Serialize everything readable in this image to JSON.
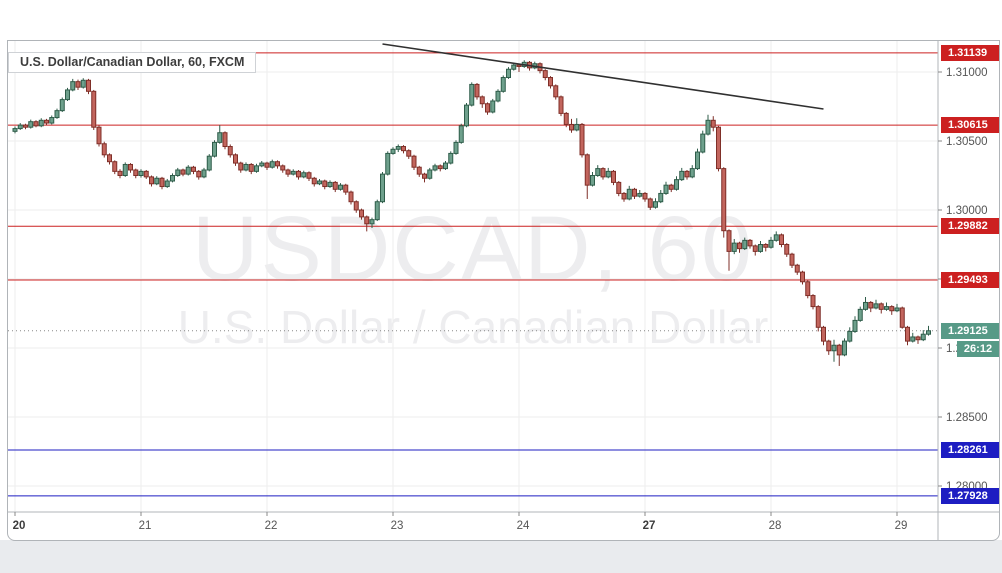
{
  "legend": {
    "title": "U.S. Dollar/Canadian Dollar, 60, FXCM"
  },
  "watermark": {
    "line1": "USDCAD, 60",
    "line2": "U.S. Dollar / Canadian Dollar"
  },
  "colors": {
    "up_fill": "#6ea08c",
    "up_border": "#2f5d4a",
    "down_fill": "#c2655d",
    "down_border": "#7f2f28",
    "resistance": "#cc2020",
    "support": "#1d1dc2",
    "current": "#579a87",
    "grid": "#ededed",
    "axis_text": "#555555",
    "axis_text_bold": "#3c3c3c",
    "border": "#b0b4b8",
    "trend": "#303030",
    "tag_text": "#ffffff",
    "current_dotted": "#888888"
  },
  "price_axis": {
    "ticks": [
      {
        "price": 131000,
        "label": "1.31000"
      },
      {
        "price": 130500,
        "label": "1.30500"
      },
      {
        "price": 130000,
        "label": "1.30000"
      },
      {
        "price": 129500,
        "label": "1.29500"
      },
      {
        "price": 129000,
        "label": "1.29000"
      },
      {
        "price": 128500,
        "label": "1.28500"
      },
      {
        "price": 128000,
        "label": "1.28000"
      }
    ]
  },
  "time_axis": {
    "ticks": [
      {
        "bar": 0,
        "label": "20",
        "bold": true
      },
      {
        "bar": 24,
        "label": "21",
        "bold": false
      },
      {
        "bar": 48,
        "label": "22",
        "bold": false
      },
      {
        "bar": 72,
        "label": "23",
        "bold": false
      },
      {
        "bar": 96,
        "label": "24",
        "bold": false
      },
      {
        "bar": 120,
        "label": "27",
        "bold": true
      },
      {
        "bar": 144,
        "label": "28",
        "bold": false
      },
      {
        "bar": 168,
        "label": "29",
        "bold": false
      }
    ]
  },
  "chart_data": {
    "type": "candlestick",
    "title": "U.S. Dollar/Canadian Dollar, 60, FXCM",
    "symbol": "USDCAD",
    "interval": "60",
    "exchange": "FXCM",
    "price_unit": 1e-05,
    "ylim": [
      1.2781,
      1.3133
    ],
    "x_labels": [
      "20",
      "21",
      "22",
      "23",
      "24",
      "27",
      "28",
      "29"
    ],
    "levels": [
      {
        "price": 131139,
        "label": "1.31139",
        "type": "resistance"
      },
      {
        "price": 130615,
        "label": "1.30615",
        "type": "resistance"
      },
      {
        "price": 129882,
        "label": "1.29882",
        "type": "resistance"
      },
      {
        "price": 129493,
        "label": "1.29493",
        "type": "resistance"
      },
      {
        "price": 128261,
        "label": "1.28261",
        "type": "support"
      },
      {
        "price": 127928,
        "label": "1.27928",
        "type": "support"
      }
    ],
    "current": {
      "price": 129125,
      "label": "1.29125",
      "countdown": "26:12"
    },
    "trendline": {
      "from": {
        "bar": 70,
        "price": 131203
      },
      "to": {
        "bar": 154,
        "price": 130732
      }
    },
    "candles": [
      [
        130570,
        130605,
        130555,
        130590
      ],
      [
        130590,
        130630,
        130580,
        130615
      ],
      [
        130615,
        130625,
        130585,
        130600
      ],
      [
        130600,
        130655,
        130590,
        130640
      ],
      [
        130640,
        130650,
        130600,
        130610
      ],
      [
        130610,
        130665,
        130600,
        130650
      ],
      [
        130650,
        130660,
        130615,
        130630
      ],
      [
        130630,
        130685,
        130620,
        130670
      ],
      [
        130670,
        130735,
        130660,
        130720
      ],
      [
        130720,
        130815,
        130710,
        130800
      ],
      [
        130800,
        130885,
        130790,
        130870
      ],
      [
        130870,
        130950,
        130860,
        130930
      ],
      [
        130930,
        130945,
        130870,
        130890
      ],
      [
        130890,
        130955,
        130880,
        130940
      ],
      [
        130940,
        130950,
        130840,
        130860
      ],
      [
        130860,
        130870,
        130580,
        130600
      ],
      [
        130600,
        130615,
        130460,
        130480
      ],
      [
        130480,
        130495,
        130380,
        130400
      ],
      [
        130400,
        130410,
        130330,
        130350
      ],
      [
        130350,
        130360,
        130260,
        130280
      ],
      [
        130280,
        130295,
        130230,
        130250
      ],
      [
        130250,
        130345,
        130240,
        130330
      ],
      [
        130330,
        130340,
        130270,
        130290
      ],
      [
        130290,
        130300,
        130230,
        130250
      ],
      [
        130250,
        130295,
        130235,
        130280
      ],
      [
        130280,
        130290,
        130225,
        130240
      ],
      [
        130240,
        130250,
        130170,
        130190
      ],
      [
        130190,
        130245,
        130180,
        130230
      ],
      [
        130230,
        130240,
        130150,
        130170
      ],
      [
        130170,
        130225,
        130160,
        130210
      ],
      [
        130210,
        130265,
        130200,
        130250
      ],
      [
        130250,
        130305,
        130240,
        130290
      ],
      [
        130290,
        130300,
        130245,
        130260
      ],
      [
        130260,
        130325,
        130250,
        130310
      ],
      [
        130310,
        130320,
        130260,
        130280
      ],
      [
        130280,
        130290,
        130220,
        130240
      ],
      [
        130240,
        130305,
        130230,
        130290
      ],
      [
        130290,
        130405,
        130280,
        130390
      ],
      [
        130390,
        130505,
        130380,
        130490
      ],
      [
        130490,
        130615,
        130480,
        130560
      ],
      [
        130560,
        130570,
        130440,
        130460
      ],
      [
        130460,
        130475,
        130380,
        130400
      ],
      [
        130400,
        130410,
        130320,
        130340
      ],
      [
        130340,
        130350,
        130270,
        130290
      ],
      [
        130290,
        130345,
        130280,
        130330
      ],
      [
        130330,
        130340,
        130260,
        130280
      ],
      [
        130280,
        130335,
        130270,
        130320
      ],
      [
        130320,
        130355,
        130310,
        130340
      ],
      [
        130340,
        130350,
        130290,
        130310
      ],
      [
        130310,
        130365,
        130300,
        130350
      ],
      [
        130350,
        130360,
        130300,
        130320
      ],
      [
        130320,
        130330,
        130270,
        130290
      ],
      [
        130290,
        130300,
        130240,
        130260
      ],
      [
        130260,
        130295,
        130250,
        130280
      ],
      [
        130280,
        130290,
        130220,
        130240
      ],
      [
        130240,
        130285,
        130230,
        130270
      ],
      [
        130270,
        130280,
        130210,
        130230
      ],
      [
        130230,
        130240,
        130170,
        130190
      ],
      [
        130190,
        130225,
        130180,
        130210
      ],
      [
        130210,
        130220,
        130150,
        130170
      ],
      [
        130170,
        130215,
        130160,
        130200
      ],
      [
        130200,
        130210,
        130130,
        130150
      ],
      [
        130150,
        130195,
        130140,
        130180
      ],
      [
        130180,
        130190,
        130110,
        130130
      ],
      [
        130130,
        130140,
        130040,
        130060
      ],
      [
        130060,
        130070,
        129980,
        130000
      ],
      [
        130000,
        130010,
        129930,
        129950
      ],
      [
        129950,
        129960,
        129845,
        129900
      ],
      [
        129900,
        129945,
        129870,
        129930
      ],
      [
        129930,
        130075,
        129920,
        130060
      ],
      [
        130060,
        130275,
        130050,
        130260
      ],
      [
        130260,
        130425,
        130250,
        130410
      ],
      [
        130410,
        130455,
        130400,
        130440
      ],
      [
        130440,
        130475,
        130420,
        130460
      ],
      [
        130460,
        130470,
        130410,
        130430
      ],
      [
        130430,
        130440,
        130370,
        130390
      ],
      [
        130390,
        130400,
        130290,
        130310
      ],
      [
        130310,
        130320,
        130240,
        130260
      ],
      [
        130260,
        130270,
        130200,
        130230
      ],
      [
        130230,
        130305,
        130220,
        130290
      ],
      [
        130290,
        130335,
        130280,
        130320
      ],
      [
        130320,
        130330,
        130280,
        130300
      ],
      [
        130300,
        130355,
        130290,
        130340
      ],
      [
        130340,
        130425,
        130330,
        130410
      ],
      [
        130410,
        130505,
        130400,
        130490
      ],
      [
        130490,
        130625,
        130480,
        130610
      ],
      [
        130610,
        130775,
        130600,
        130760
      ],
      [
        130760,
        130925,
        130750,
        130910
      ],
      [
        130910,
        130920,
        130800,
        130820
      ],
      [
        130820,
        130830,
        130740,
        130770
      ],
      [
        130770,
        130780,
        130690,
        130710
      ],
      [
        130710,
        130805,
        130700,
        130790
      ],
      [
        130790,
        130875,
        130780,
        130860
      ],
      [
        130860,
        130975,
        130850,
        130960
      ],
      [
        130960,
        131035,
        130950,
        131020
      ],
      [
        131020,
        131065,
        131010,
        131050
      ],
      [
        131050,
        131060,
        131000,
        131040
      ],
      [
        131040,
        131085,
        131030,
        131070
      ],
      [
        131070,
        131080,
        131010,
        131030
      ],
      [
        131030,
        131075,
        131020,
        131060
      ],
      [
        131060,
        131070,
        130990,
        131010
      ],
      [
        131010,
        131020,
        130940,
        130960
      ],
      [
        130960,
        130970,
        130880,
        130900
      ],
      [
        130900,
        130910,
        130800,
        130820
      ],
      [
        130820,
        130830,
        130680,
        130700
      ],
      [
        130700,
        130710,
        130600,
        130620
      ],
      [
        130620,
        130660,
        130560,
        130580
      ],
      [
        130580,
        130665,
        130570,
        130620
      ],
      [
        130620,
        130630,
        130380,
        130400
      ],
      [
        130400,
        130410,
        130080,
        130180
      ],
      [
        130180,
        130275,
        130170,
        130250
      ],
      [
        130250,
        130325,
        130240,
        130300
      ],
      [
        130300,
        130310,
        130220,
        130240
      ],
      [
        130240,
        130305,
        130230,
        130280
      ],
      [
        130280,
        130290,
        130180,
        130200
      ],
      [
        130200,
        130210,
        130100,
        130120
      ],
      [
        130120,
        130130,
        130060,
        130080
      ],
      [
        130080,
        130175,
        130070,
        130150
      ],
      [
        130150,
        130160,
        130080,
        130100
      ],
      [
        130100,
        130145,
        130090,
        130120
      ],
      [
        130120,
        130130,
        130060,
        130080
      ],
      [
        130080,
        130090,
        130000,
        130020
      ],
      [
        130020,
        130085,
        130010,
        130060
      ],
      [
        130060,
        130145,
        130050,
        130120
      ],
      [
        130120,
        130205,
        130110,
        130180
      ],
      [
        130180,
        130190,
        130130,
        130150
      ],
      [
        130150,
        130245,
        130140,
        130220
      ],
      [
        130220,
        130305,
        130210,
        130280
      ],
      [
        130280,
        130290,
        130220,
        130240
      ],
      [
        130240,
        130325,
        130230,
        130300
      ],
      [
        130300,
        130445,
        130290,
        130420
      ],
      [
        130420,
        130575,
        130410,
        130550
      ],
      [
        130550,
        130690,
        130540,
        130650
      ],
      [
        130650,
        130680,
        130570,
        130600
      ],
      [
        130600,
        130610,
        130280,
        130300
      ],
      [
        130300,
        130310,
        129800,
        129850
      ],
      [
        129850,
        129860,
        129560,
        129700
      ],
      [
        129700,
        129790,
        129680,
        129760
      ],
      [
        129760,
        129770,
        129690,
        129720
      ],
      [
        129720,
        129800,
        129710,
        129780
      ],
      [
        129780,
        129790,
        129720,
        129740
      ],
      [
        129740,
        129750,
        129670,
        129700
      ],
      [
        129700,
        129775,
        129690,
        129750
      ],
      [
        129750,
        129760,
        129700,
        129730
      ],
      [
        129730,
        129805,
        129720,
        129780
      ],
      [
        129780,
        129845,
        129770,
        129820
      ],
      [
        129820,
        129830,
        129730,
        129750
      ],
      [
        129750,
        129760,
        129660,
        129680
      ],
      [
        129680,
        129690,
        129580,
        129600
      ],
      [
        129600,
        129610,
        129530,
        129550
      ],
      [
        129550,
        129560,
        129460,
        129480
      ],
      [
        129480,
        129490,
        129360,
        129380
      ],
      [
        129380,
        129390,
        129280,
        129300
      ],
      [
        129300,
        129310,
        129120,
        129150
      ],
      [
        129150,
        129160,
        129020,
        129050
      ],
      [
        129050,
        129060,
        128950,
        128980
      ],
      [
        128980,
        129060,
        128900,
        129020
      ],
      [
        129020,
        129030,
        128870,
        128950
      ],
      [
        128950,
        129070,
        128940,
        129050
      ],
      [
        129050,
        129150,
        129040,
        129120
      ],
      [
        129120,
        129230,
        129110,
        129200
      ],
      [
        129200,
        129300,
        129190,
        129280
      ],
      [
        129280,
        129370,
        129270,
        129330
      ],
      [
        129330,
        129340,
        129260,
        129290
      ],
      [
        129290,
        129350,
        129280,
        129320
      ],
      [
        129320,
        129330,
        129250,
        129280
      ],
      [
        129280,
        129330,
        129270,
        129300
      ],
      [
        129300,
        129310,
        129240,
        129270
      ],
      [
        129270,
        129320,
        129260,
        129290
      ],
      [
        129290,
        129300,
        129140,
        129150
      ],
      [
        129150,
        129160,
        129020,
        129050
      ],
      [
        129050,
        129110,
        129040,
        129080
      ],
      [
        129080,
        129090,
        129030,
        129060
      ],
      [
        129060,
        129130,
        129050,
        129100
      ],
      [
        129100,
        129160,
        129090,
        129125
      ]
    ]
  }
}
